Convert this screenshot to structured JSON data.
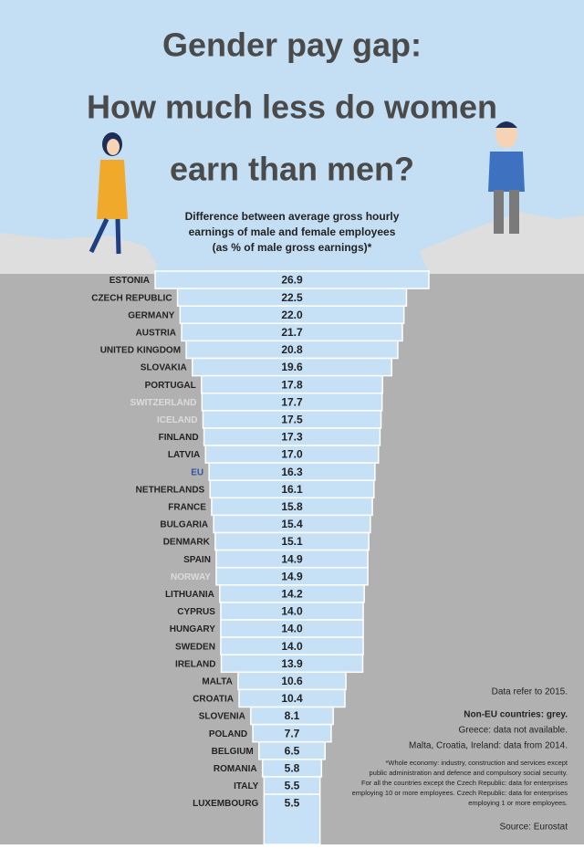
{
  "chart_data": {
    "type": "bar",
    "title_lines": [
      "Gender pay gap:",
      "How much less do women",
      "earn than men?"
    ],
    "subtitle_lines": [
      "Difference between average gross hourly",
      "earnings of male and female employees",
      "(as % of male gross earnings)*"
    ],
    "categories": [
      "ESTONIA",
      "CZECH REPUBLIC",
      "GERMANY",
      "AUSTRIA",
      "UNITED KINGDOM",
      "SLOVAKIA",
      "PORTUGAL",
      "SWITZERLAND",
      "ICELAND",
      "FINLAND",
      "LATVIA",
      "EU",
      "NETHERLANDS",
      "FRANCE",
      "BULGARIA",
      "DENMARK",
      "SPAIN",
      "NORWAY",
      "LITHUANIA",
      "CYPRUS",
      "HUNGARY",
      "SWEDEN",
      "IRELAND",
      "MALTA",
      "CROATIA",
      "SLOVENIA",
      "POLAND",
      "BELGIUM",
      "ROMANIA",
      "ITALY",
      "LUXEMBOURG"
    ],
    "values": [
      26.9,
      22.5,
      22.0,
      21.7,
      20.8,
      19.6,
      17.8,
      17.7,
      17.5,
      17.3,
      17.0,
      16.3,
      16.1,
      15.8,
      15.4,
      15.1,
      14.9,
      14.9,
      14.2,
      14.0,
      14.0,
      14.0,
      13.9,
      10.6,
      10.4,
      8.1,
      7.7,
      6.5,
      5.8,
      5.5,
      5.5
    ],
    "value_labels": [
      "26.9",
      "22.5",
      "22.0",
      "21.7",
      "20.8",
      "19.6",
      "17.8",
      "17.7",
      "17.5",
      "17.3",
      "17.0",
      "16.3",
      "16.1",
      "15.8",
      "15.4",
      "15.1",
      "14.9",
      "14.9",
      "14.2",
      "14.0",
      "14.0",
      "14.0",
      "13.9",
      "10.6",
      "10.4",
      "8.1",
      "7.7",
      "6.5",
      "5.8",
      "5.5",
      "5.5"
    ],
    "color": "#c6e0f5",
    "category_colors": [
      "#222",
      "#222",
      "#222",
      "#222",
      "#222",
      "#222",
      "#222",
      "#dcdcdc",
      "#dcdcdc",
      "#222",
      "#222",
      "#2e55a3",
      "#222",
      "#222",
      "#222",
      "#222",
      "#222",
      "#dcdcdc",
      "#222",
      "#222",
      "#222",
      "#222",
      "#222",
      "#222",
      "#222",
      "#222",
      "#222",
      "#222",
      "#222",
      "#222",
      "#222"
    ],
    "notes": [
      "Data refer to 2015.",
      "Non-EU countries: grey.",
      "Greece: data not available.",
      "Malta, Croatia, Ireland: data from 2014."
    ],
    "footnote_lines": [
      "*Whole economy: industry, construction and services except",
      "public administration and defence and compulsory social security.",
      "For all the countries except the Czech Republic: data for enterprises",
      "employing 10 or more employees. Czech Republic: data for enterprises",
      "employing 1 or more employees."
    ],
    "source": "Source: Eurostat"
  }
}
